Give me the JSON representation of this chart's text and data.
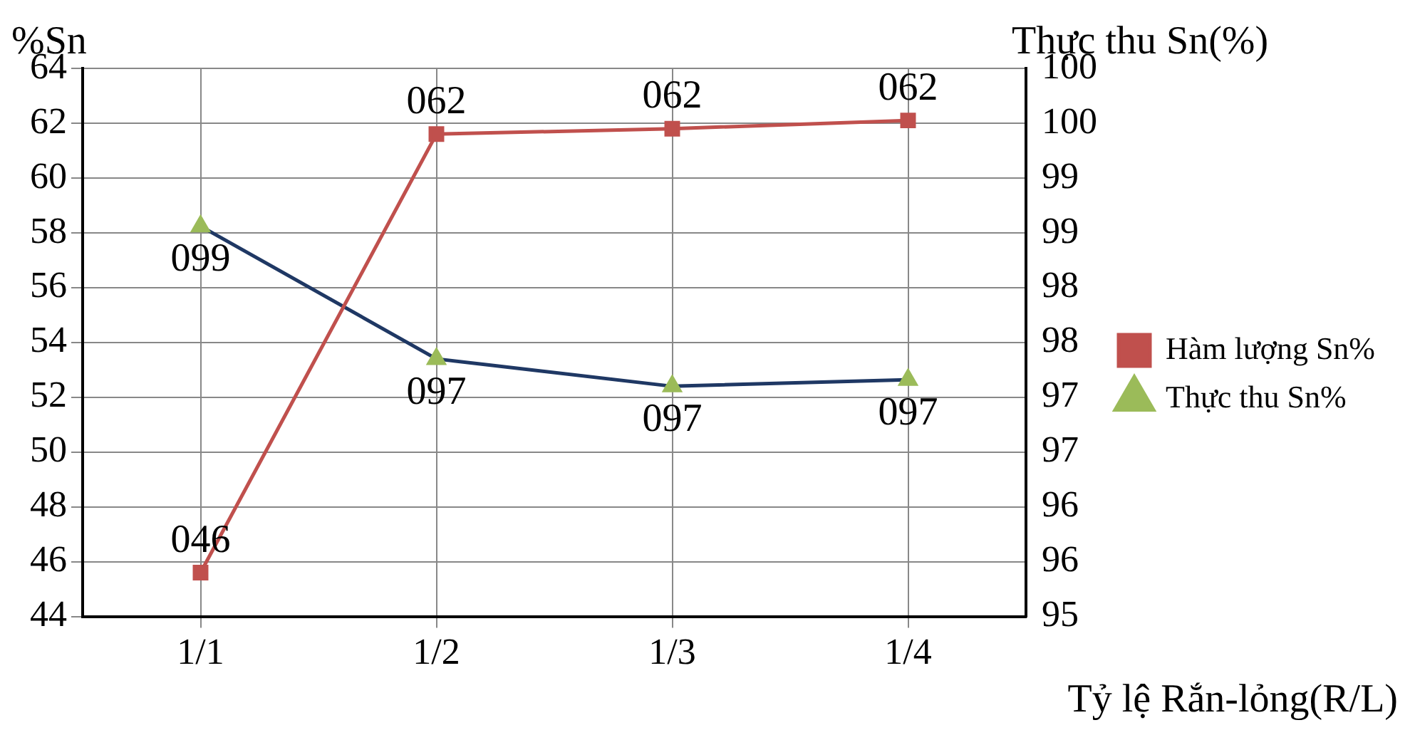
{
  "chart_data": {
    "type": "line",
    "ylabel": "%Sn",
    "y2label": "Thực thu Sn(%)",
    "xlabel": "Tỷ lệ Rắn-lỏng(R/L)",
    "categories": [
      "1/1",
      "1/2",
      "1/3",
      "1/4"
    ],
    "series": [
      {
        "name": "Hàm lượng Sn%",
        "color": "#c0504d",
        "marker": "square",
        "values": [
          45.6,
          61.6,
          61.8,
          62.1
        ],
        "value_labels": [
          "046",
          "062",
          "062",
          "062"
        ]
      },
      {
        "name": "Thực thu Sn%",
        "color": "#1f3864",
        "colors": [
          "#9bbb59",
          "#9bbb59",
          "#9bbb59",
          "#9bbb59"
        ],
        "marker": "triangle",
        "axis": "y2",
        "values": [
          98.56,
          97.35,
          97.1,
          97.16
        ],
        "value_labels": [
          "099",
          "097",
          "097",
          "097"
        ]
      }
    ],
    "ylim": [
      44,
      64
    ],
    "yticks": [
      44,
      46,
      48,
      50,
      52,
      54,
      56,
      58,
      60,
      62,
      64
    ],
    "y2lim": [
      95,
      100
    ],
    "y2ticks": [
      {
        "value": 95,
        "label": "95"
      },
      {
        "value": 95.5,
        "label": "96"
      },
      {
        "value": 96,
        "label": "96"
      },
      {
        "value": 96.5,
        "label": "97"
      },
      {
        "value": 97,
        "label": "97"
      },
      {
        "value": 97.5,
        "label": "98"
      },
      {
        "value": 98,
        "label": "98"
      },
      {
        "value": 98.5,
        "label": "99"
      },
      {
        "value": 99,
        "label": "99"
      },
      {
        "value": 99.5,
        "label": "100"
      },
      {
        "value": 100,
        "label": "100"
      }
    ],
    "grid": true,
    "legend": "right"
  }
}
